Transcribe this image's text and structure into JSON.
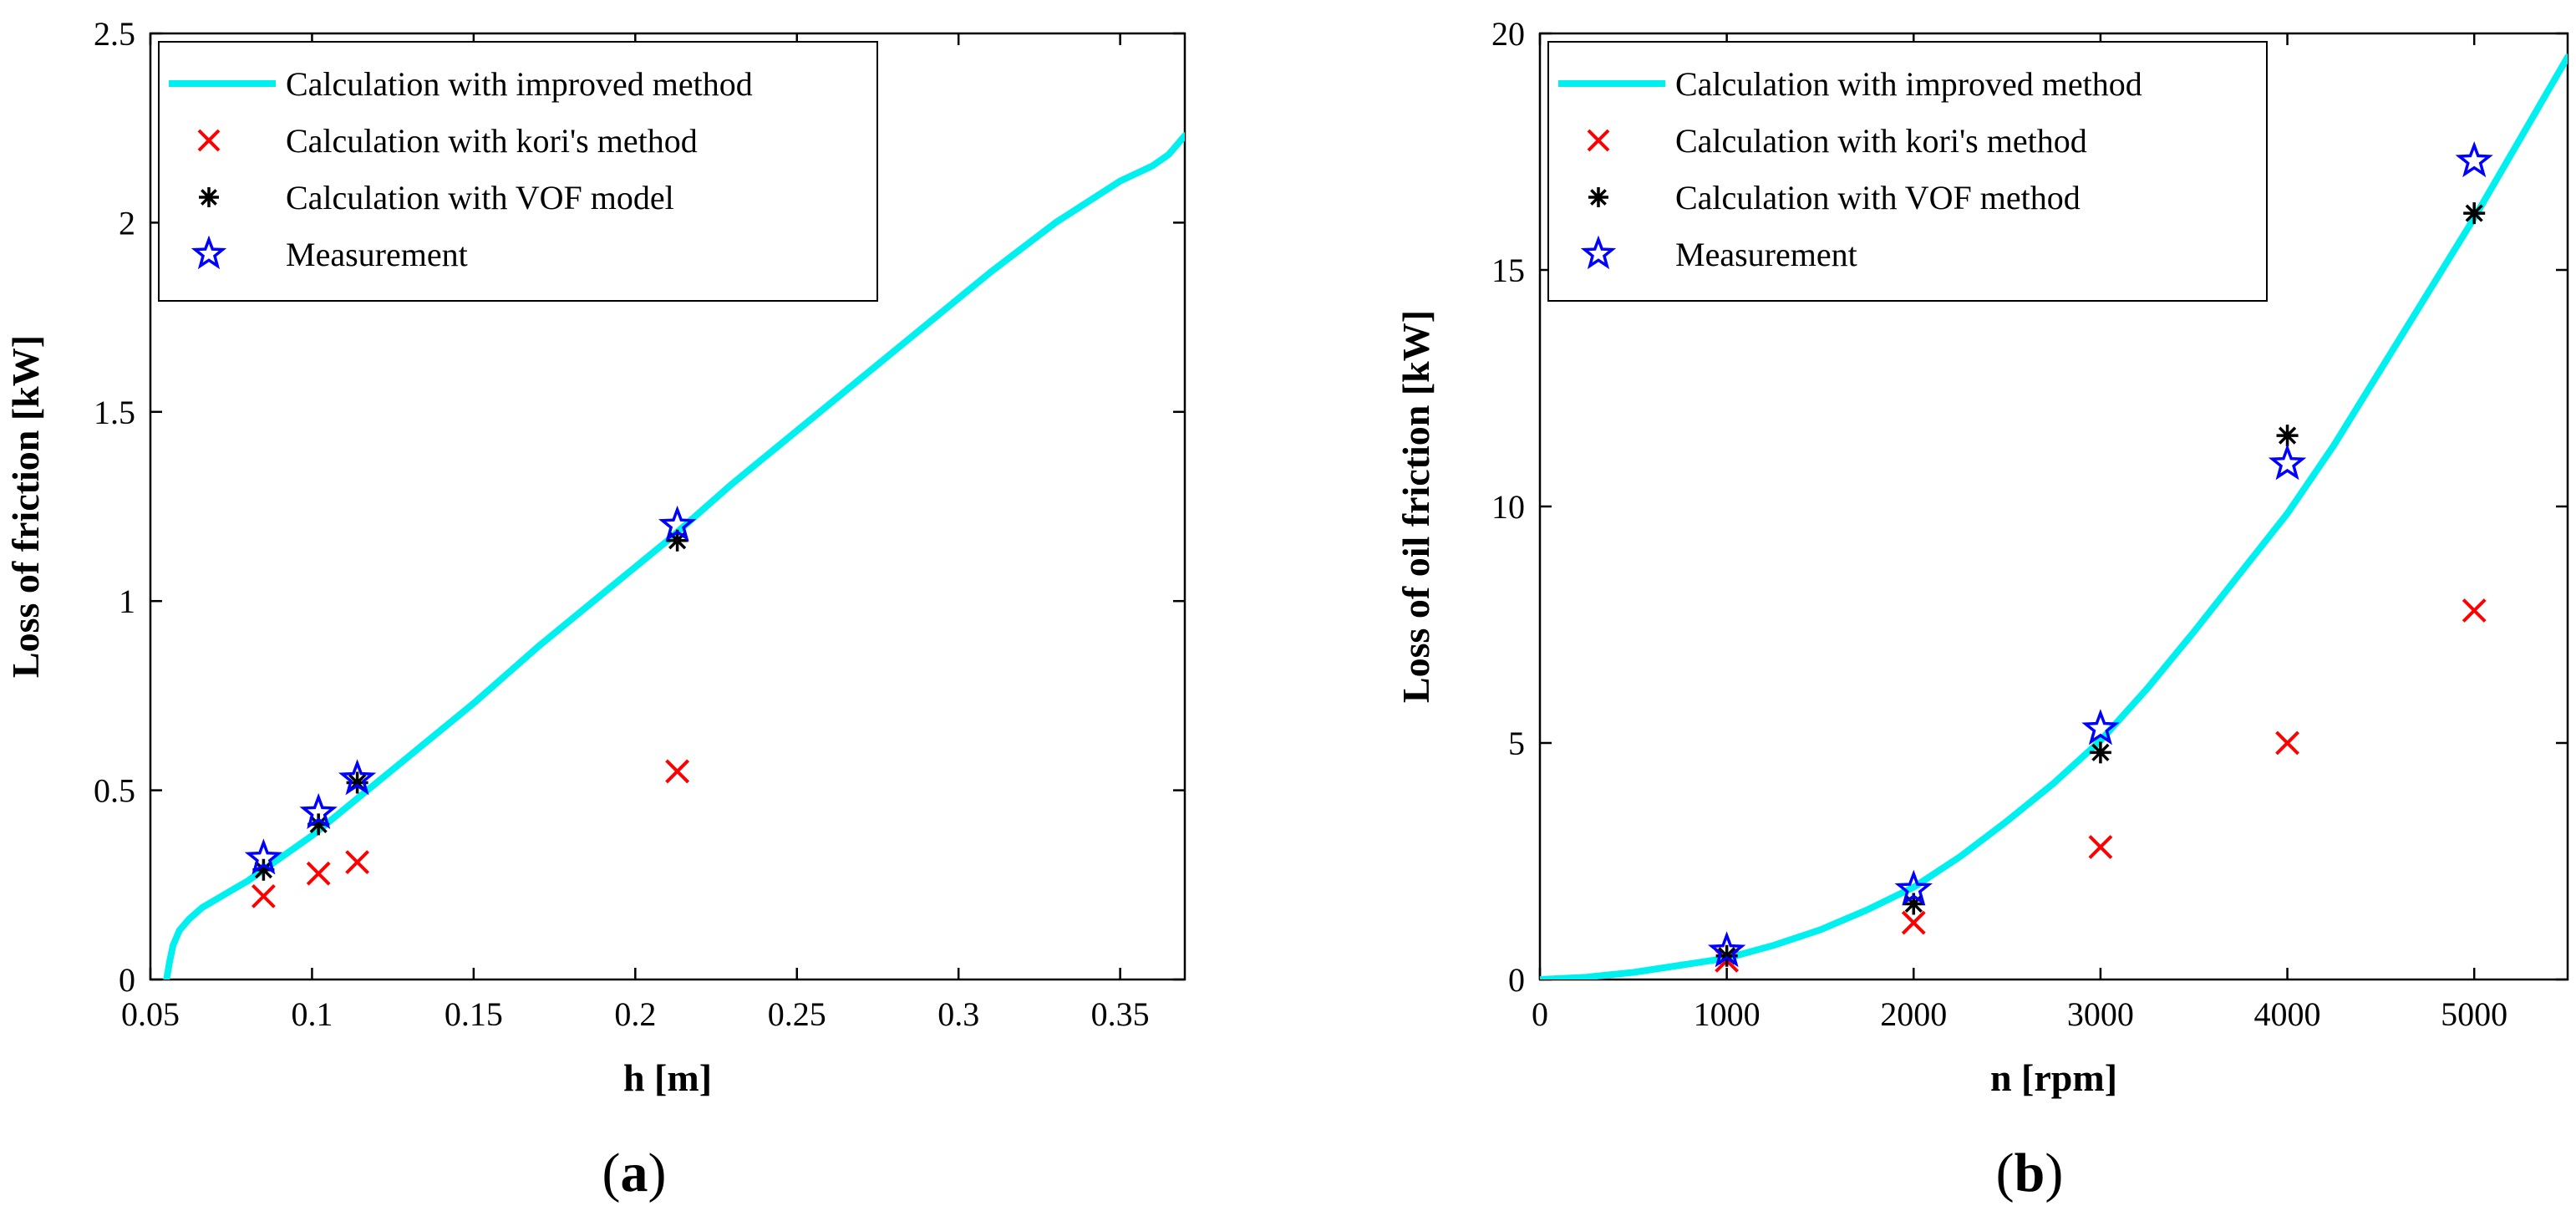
{
  "colors": {
    "improved": "#00f0f0",
    "kori": "#ff0000",
    "vof": "#000000",
    "measurement": "#0000ff"
  },
  "chart_data": [
    {
      "type": "line+scatter",
      "panel_label": "a",
      "xlabel": "h [m]",
      "ylabel": "Loss of friction [kW]",
      "xlim": [
        0.05,
        0.37
      ],
      "ylim": [
        0,
        2.5
      ],
      "xticks": [
        "0.05",
        "0.1",
        "0.15",
        "0.2",
        "0.25",
        "0.3",
        "0.35"
      ],
      "yticks": [
        "0",
        "0.5",
        "1",
        "1.5",
        "2",
        "2.5"
      ],
      "legend_position": "top-left",
      "legend": [
        "Calculation with improved method",
        "Calculation with kori's method",
        "Calculation with VOF model",
        "Measurement"
      ],
      "series": [
        {
          "name": "Calculation with improved method",
          "kind": "line",
          "x": [
            0.055,
            0.056,
            0.057,
            0.059,
            0.062,
            0.066,
            0.07,
            0.075,
            0.08,
            0.085,
            0.09,
            0.1,
            0.11,
            0.12,
            0.13,
            0.15,
            0.17,
            0.19,
            0.21,
            0.23,
            0.25,
            0.27,
            0.29,
            0.31,
            0.33,
            0.35,
            0.36,
            0.365,
            0.368,
            0.37
          ],
          "y": [
            0.0,
            0.05,
            0.09,
            0.13,
            0.16,
            0.19,
            0.21,
            0.235,
            0.26,
            0.29,
            0.32,
            0.38,
            0.45,
            0.52,
            0.59,
            0.73,
            0.88,
            1.02,
            1.16,
            1.31,
            1.45,
            1.59,
            1.73,
            1.87,
            2.0,
            2.11,
            2.15,
            2.18,
            2.21,
            2.23
          ]
        },
        {
          "name": "Calculation with kori's method",
          "kind": "scatter",
          "marker": "x",
          "x": [
            0.085,
            0.102,
            0.114,
            0.213
          ],
          "y": [
            0.22,
            0.28,
            0.31,
            0.55
          ]
        },
        {
          "name": "Calculation with VOF model",
          "kind": "scatter",
          "marker": "asterisk",
          "x": [
            0.085,
            0.102,
            0.114,
            0.213
          ],
          "y": [
            0.29,
            0.41,
            0.52,
            1.16
          ]
        },
        {
          "name": "Measurement",
          "kind": "scatter",
          "marker": "star",
          "x": [
            0.085,
            0.102,
            0.114,
            0.213
          ],
          "y": [
            0.32,
            0.44,
            0.53,
            1.2
          ]
        }
      ]
    },
    {
      "type": "line+scatter",
      "panel_label": "b",
      "xlabel": "n [rpm]",
      "ylabel": "Loss of oil friction [kW]",
      "xlim": [
        0,
        5500
      ],
      "ylim": [
        0,
        20
      ],
      "xticks": [
        "0",
        "1000",
        "2000",
        "3000",
        "4000",
        "5000"
      ],
      "yticks": [
        "0",
        "5",
        "10",
        "15",
        "20"
      ],
      "legend_position": "top-left",
      "legend": [
        "Calculation with improved method",
        "Calculation with kori's method",
        "Calculation with VOF method",
        "Measurement"
      ],
      "series": [
        {
          "name": "Calculation with improved method",
          "kind": "line",
          "x": [
            0,
            250,
            500,
            750,
            1000,
            1250,
            1500,
            1750,
            2000,
            2250,
            2500,
            2750,
            3000,
            3250,
            3500,
            3750,
            4000,
            4250,
            4500,
            4750,
            5000,
            5250,
            5500
          ],
          "y": [
            0.0,
            0.05,
            0.15,
            0.3,
            0.45,
            0.72,
            1.05,
            1.47,
            1.95,
            2.6,
            3.35,
            4.15,
            5.05,
            6.15,
            7.35,
            8.6,
            9.85,
            11.3,
            12.9,
            14.5,
            16.1,
            17.8,
            19.5
          ]
        },
        {
          "name": "Calculation with kori's method",
          "kind": "scatter",
          "marker": "x",
          "x": [
            1000,
            2000,
            3000,
            4000,
            5000
          ],
          "y": [
            0.4,
            1.2,
            2.8,
            5.0,
            7.8
          ]
        },
        {
          "name": "Calculation with VOF method",
          "kind": "scatter",
          "marker": "asterisk",
          "x": [
            1000,
            2000,
            3000,
            4000,
            5000
          ],
          "y": [
            0.5,
            1.6,
            4.8,
            11.5,
            16.2
          ]
        },
        {
          "name": "Measurement",
          "kind": "scatter",
          "marker": "star",
          "x": [
            1000,
            2000,
            3000,
            4000,
            5000
          ],
          "y": [
            0.6,
            1.9,
            5.3,
            10.9,
            17.3
          ]
        }
      ]
    }
  ]
}
